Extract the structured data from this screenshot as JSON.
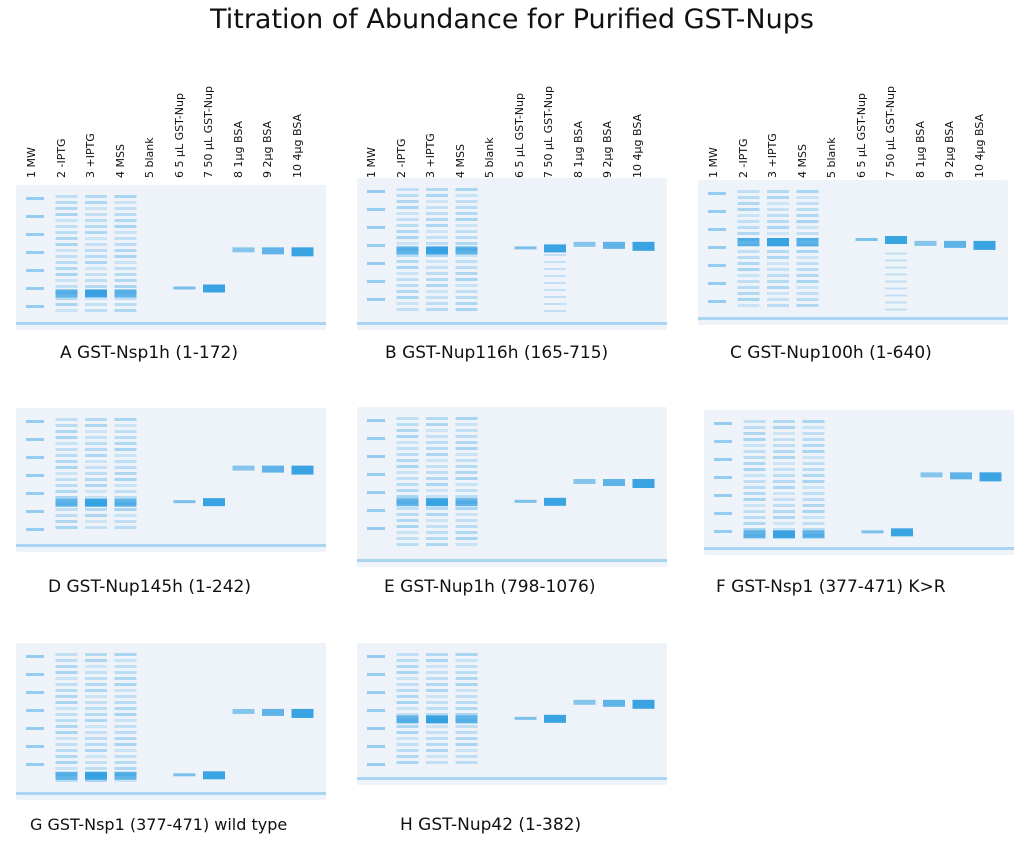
{
  "title": "Titration of Abundance for Purified GST-Nups",
  "lane_labels": [
    "1 MW",
    "2 -IPTG",
    "3 +IPTG",
    "4 MSS",
    "5 blank",
    "6 5 µL GST-Nup",
    "7 50 µL GST-Nup",
    "8 1µg BSA",
    "9 2µg BSA",
    "10 4µg BSA"
  ],
  "panels": [
    {
      "id": "A",
      "caption": "A  GST-Nsp1h (1-172)"
    },
    {
      "id": "B",
      "caption": "B  GST-Nup116h (165-715)"
    },
    {
      "id": "C",
      "caption": "C  GST-Nup100h (1-640)"
    },
    {
      "id": "D",
      "caption": "D  GST-Nup145h (1-242)"
    },
    {
      "id": "E",
      "caption": "E  GST-Nup1h (798-1076)"
    },
    {
      "id": "F",
      "caption": "F  GST-Nsp1 (377-471) K>R"
    },
    {
      "id": "G",
      "caption": "G  GST-Nsp1 (377-471) wild type"
    },
    {
      "id": "H",
      "caption": "H  GST-Nup42 (1-382)"
    }
  ],
  "colors": {
    "gel_bg": "#eef3f9",
    "band": "#2f9ee0",
    "band_light": "#8cc8ee"
  }
}
